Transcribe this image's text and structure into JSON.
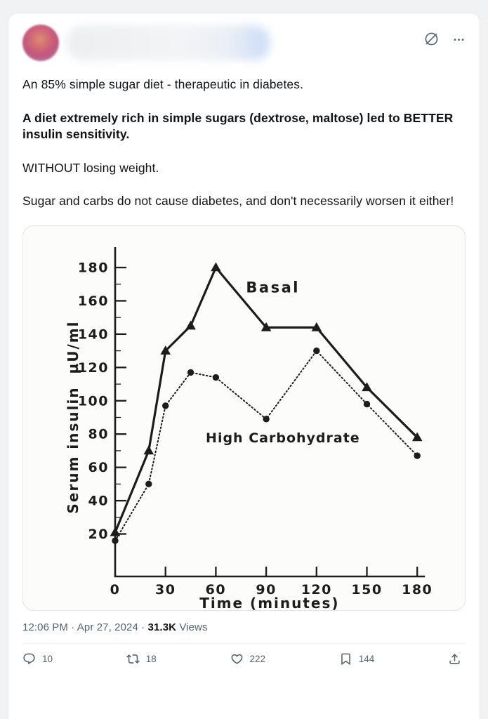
{
  "header": {
    "grok_icon": "grok-slash-circle-icon",
    "more_icon": "ellipsis-more-icon"
  },
  "post": {
    "paragraphs": [
      {
        "text": "An 85% simple sugar diet - therapeutic in diabetes."
      },
      {
        "text": "A diet extremely rich in simple sugars (dextrose, maltose) led to BETTER insulin sensitivity."
      },
      {
        "text": "WITHOUT losing weight."
      },
      {
        "text": "Sugar and carbs do not cause diabetes, and don't necessarily worsen it either!"
      }
    ],
    "timestamp": "12:06 PM · Apr 27, 2024",
    "separator": " · ",
    "views_count": "31.3K",
    "views_label": " Views"
  },
  "engagement": {
    "replies": "10",
    "reposts": "18",
    "likes": "222",
    "bookmarks": "144"
  },
  "chart_data": {
    "type": "line",
    "title": "",
    "xlabel": "Time (minutes)",
    "ylabel": "Serum insulin  µU/ml",
    "x": [
      0,
      20,
      30,
      45,
      60,
      90,
      120,
      150,
      180
    ],
    "xticks": [
      0,
      30,
      60,
      90,
      120,
      150,
      180
    ],
    "yticks": [
      20,
      40,
      60,
      80,
      100,
      120,
      140,
      160,
      180
    ],
    "yticks_minor": [
      30,
      50,
      70,
      90,
      110,
      130,
      150,
      170
    ],
    "xlim": [
      0,
      185
    ],
    "ylim": [
      0,
      190
    ],
    "grid": false,
    "legend_position": "inline-annotations",
    "series": [
      {
        "name": "Basal",
        "marker": "triangle",
        "line_style": "solid",
        "values": [
          21,
          70,
          130,
          145,
          180,
          144,
          144,
          108,
          78
        ]
      },
      {
        "name": "High Carbohydrate",
        "marker": "circle",
        "line_style": "dotted",
        "values": [
          16,
          50,
          97,
          117,
          114,
          89,
          130,
          98,
          67
        ]
      }
    ],
    "annotations": [
      {
        "text": "Basal",
        "t": 78,
        "v": 165
      },
      {
        "text": "High Carbohydrate",
        "t": 54,
        "v": 75
      }
    ],
    "ink_color": "#1c1c1c"
  }
}
